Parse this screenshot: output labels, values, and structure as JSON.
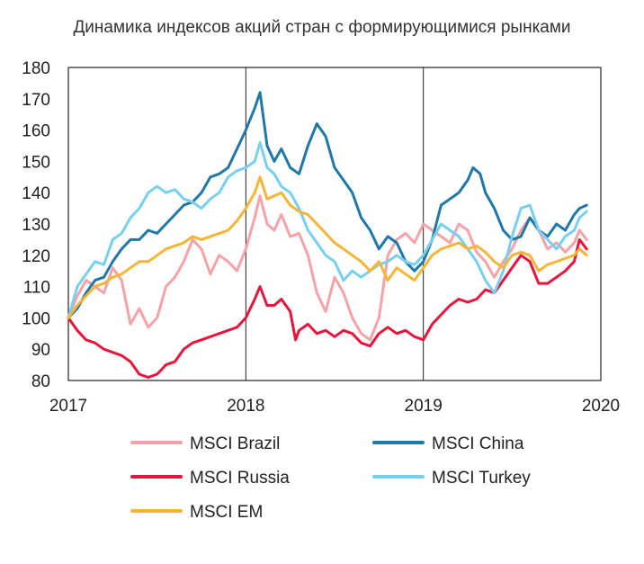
{
  "chart_data": {
    "type": "line",
    "title": "Динамика индексов акций стран с формирующимися рынками",
    "xlabel": "",
    "ylabel": "",
    "xlim": [
      2017,
      2020
    ],
    "ylim": [
      80,
      180
    ],
    "x_ticks": [
      "2017",
      "2018",
      "2019",
      "2020"
    ],
    "y_ticks": [
      "80",
      "90",
      "100",
      "110",
      "120",
      "130",
      "140",
      "150",
      "160",
      "170",
      "180"
    ],
    "grid": "vertical lines at year boundaries",
    "legend_position": "bottom",
    "series": [
      {
        "name": "MSCI Brazil",
        "color": "#f5a3a8",
        "points": [
          [
            2017.0,
            100
          ],
          [
            2017.05,
            107
          ],
          [
            2017.1,
            112
          ],
          [
            2017.15,
            110
          ],
          [
            2017.2,
            108
          ],
          [
            2017.25,
            116
          ],
          [
            2017.3,
            112
          ],
          [
            2017.35,
            98
          ],
          [
            2017.4,
            103
          ],
          [
            2017.45,
            97
          ],
          [
            2017.5,
            100
          ],
          [
            2017.55,
            110
          ],
          [
            2017.6,
            113
          ],
          [
            2017.65,
            118
          ],
          [
            2017.7,
            125
          ],
          [
            2017.75,
            122
          ],
          [
            2017.8,
            114
          ],
          [
            2017.85,
            120
          ],
          [
            2017.9,
            118
          ],
          [
            2017.95,
            115
          ],
          [
            2018.0,
            122
          ],
          [
            2018.05,
            132
          ],
          [
            2018.08,
            139
          ],
          [
            2018.12,
            130
          ],
          [
            2018.16,
            128
          ],
          [
            2018.2,
            133
          ],
          [
            2018.25,
            126
          ],
          [
            2018.3,
            127
          ],
          [
            2018.35,
            120
          ],
          [
            2018.4,
            108
          ],
          [
            2018.45,
            102
          ],
          [
            2018.5,
            113
          ],
          [
            2018.55,
            108
          ],
          [
            2018.6,
            100
          ],
          [
            2018.65,
            95
          ],
          [
            2018.7,
            93
          ],
          [
            2018.75,
            100
          ],
          [
            2018.8,
            120
          ],
          [
            2018.85,
            125
          ],
          [
            2018.9,
            127
          ],
          [
            2018.95,
            124
          ],
          [
            2019.0,
            130
          ],
          [
            2019.05,
            128
          ],
          [
            2019.1,
            126
          ],
          [
            2019.15,
            124
          ],
          [
            2019.2,
            130
          ],
          [
            2019.25,
            128
          ],
          [
            2019.3,
            121
          ],
          [
            2019.35,
            118
          ],
          [
            2019.4,
            113
          ],
          [
            2019.45,
            118
          ],
          [
            2019.5,
            122
          ],
          [
            2019.55,
            128
          ],
          [
            2019.6,
            132
          ],
          [
            2019.65,
            128
          ],
          [
            2019.7,
            122
          ],
          [
            2019.75,
            124
          ],
          [
            2019.8,
            121
          ],
          [
            2019.85,
            124
          ],
          [
            2019.88,
            128
          ],
          [
            2019.92,
            125
          ]
        ]
      },
      {
        "name": "MSCI China",
        "color": "#1f78a8",
        "points": [
          [
            2017.0,
            100
          ],
          [
            2017.05,
            103
          ],
          [
            2017.1,
            108
          ],
          [
            2017.15,
            112
          ],
          [
            2017.2,
            113
          ],
          [
            2017.25,
            118
          ],
          [
            2017.3,
            122
          ],
          [
            2017.35,
            125
          ],
          [
            2017.4,
            125
          ],
          [
            2017.45,
            128
          ],
          [
            2017.5,
            127
          ],
          [
            2017.55,
            130
          ],
          [
            2017.6,
            133
          ],
          [
            2017.65,
            136
          ],
          [
            2017.7,
            137
          ],
          [
            2017.75,
            140
          ],
          [
            2017.8,
            145
          ],
          [
            2017.85,
            146
          ],
          [
            2017.9,
            148
          ],
          [
            2017.95,
            154
          ],
          [
            2018.0,
            160
          ],
          [
            2018.05,
            167
          ],
          [
            2018.08,
            172
          ],
          [
            2018.12,
            155
          ],
          [
            2018.16,
            150
          ],
          [
            2018.2,
            154
          ],
          [
            2018.25,
            148
          ],
          [
            2018.3,
            146
          ],
          [
            2018.35,
            155
          ],
          [
            2018.4,
            162
          ],
          [
            2018.45,
            158
          ],
          [
            2018.5,
            148
          ],
          [
            2018.55,
            144
          ],
          [
            2018.6,
            140
          ],
          [
            2018.65,
            132
          ],
          [
            2018.7,
            128
          ],
          [
            2018.75,
            122
          ],
          [
            2018.8,
            126
          ],
          [
            2018.85,
            124
          ],
          [
            2018.9,
            118
          ],
          [
            2018.95,
            115
          ],
          [
            2019.0,
            118
          ],
          [
            2019.05,
            125
          ],
          [
            2019.1,
            136
          ],
          [
            2019.15,
            138
          ],
          [
            2019.2,
            140
          ],
          [
            2019.25,
            144
          ],
          [
            2019.28,
            148
          ],
          [
            2019.32,
            146
          ],
          [
            2019.35,
            140
          ],
          [
            2019.4,
            135
          ],
          [
            2019.45,
            128
          ],
          [
            2019.5,
            125
          ],
          [
            2019.55,
            126
          ],
          [
            2019.6,
            132
          ],
          [
            2019.65,
            128
          ],
          [
            2019.7,
            126
          ],
          [
            2019.75,
            130
          ],
          [
            2019.8,
            128
          ],
          [
            2019.85,
            133
          ],
          [
            2019.88,
            135
          ],
          [
            2019.92,
            136
          ]
        ]
      },
      {
        "name": "MSCI Russia",
        "color": "#e8143b",
        "points": [
          [
            2017.0,
            100
          ],
          [
            2017.05,
            96
          ],
          [
            2017.1,
            93
          ],
          [
            2017.15,
            92
          ],
          [
            2017.2,
            90
          ],
          [
            2017.25,
            89
          ],
          [
            2017.3,
            88
          ],
          [
            2017.35,
            86
          ],
          [
            2017.4,
            82
          ],
          [
            2017.45,
            81
          ],
          [
            2017.5,
            82
          ],
          [
            2017.55,
            85
          ],
          [
            2017.6,
            86
          ],
          [
            2017.65,
            90
          ],
          [
            2017.7,
            92
          ],
          [
            2017.75,
            93
          ],
          [
            2017.8,
            94
          ],
          [
            2017.85,
            95
          ],
          [
            2017.9,
            96
          ],
          [
            2017.95,
            97
          ],
          [
            2018.0,
            100
          ],
          [
            2018.05,
            106
          ],
          [
            2018.08,
            110
          ],
          [
            2018.12,
            104
          ],
          [
            2018.16,
            104
          ],
          [
            2018.2,
            106
          ],
          [
            2018.25,
            102
          ],
          [
            2018.28,
            93
          ],
          [
            2018.3,
            96
          ],
          [
            2018.35,
            98
          ],
          [
            2018.4,
            95
          ],
          [
            2018.45,
            96
          ],
          [
            2018.5,
            94
          ],
          [
            2018.55,
            96
          ],
          [
            2018.6,
            95
          ],
          [
            2018.65,
            92
          ],
          [
            2018.7,
            91
          ],
          [
            2018.75,
            95
          ],
          [
            2018.8,
            97
          ],
          [
            2018.85,
            95
          ],
          [
            2018.9,
            96
          ],
          [
            2018.95,
            94
          ],
          [
            2019.0,
            93
          ],
          [
            2019.05,
            98
          ],
          [
            2019.1,
            101
          ],
          [
            2019.15,
            104
          ],
          [
            2019.2,
            106
          ],
          [
            2019.25,
            105
          ],
          [
            2019.3,
            106
          ],
          [
            2019.35,
            109
          ],
          [
            2019.4,
            108
          ],
          [
            2019.45,
            112
          ],
          [
            2019.5,
            116
          ],
          [
            2019.55,
            120
          ],
          [
            2019.6,
            118
          ],
          [
            2019.65,
            111
          ],
          [
            2019.7,
            111
          ],
          [
            2019.75,
            113
          ],
          [
            2019.8,
            115
          ],
          [
            2019.85,
            118
          ],
          [
            2019.88,
            125
          ],
          [
            2019.92,
            122
          ]
        ]
      },
      {
        "name": "MSCI Turkey",
        "color": "#79cfef",
        "points": [
          [
            2017.0,
            100
          ],
          [
            2017.05,
            110
          ],
          [
            2017.1,
            114
          ],
          [
            2017.15,
            118
          ],
          [
            2017.2,
            117
          ],
          [
            2017.25,
            125
          ],
          [
            2017.3,
            127
          ],
          [
            2017.35,
            132
          ],
          [
            2017.4,
            135
          ],
          [
            2017.45,
            140
          ],
          [
            2017.5,
            142
          ],
          [
            2017.55,
            140
          ],
          [
            2017.6,
            141
          ],
          [
            2017.65,
            138
          ],
          [
            2017.7,
            137
          ],
          [
            2017.75,
            135
          ],
          [
            2017.8,
            138
          ],
          [
            2017.85,
            140
          ],
          [
            2017.9,
            145
          ],
          [
            2017.95,
            147
          ],
          [
            2018.0,
            148
          ],
          [
            2018.05,
            150
          ],
          [
            2018.08,
            156
          ],
          [
            2018.12,
            148
          ],
          [
            2018.16,
            146
          ],
          [
            2018.2,
            142
          ],
          [
            2018.25,
            140
          ],
          [
            2018.3,
            135
          ],
          [
            2018.35,
            128
          ],
          [
            2018.4,
            124
          ],
          [
            2018.45,
            120
          ],
          [
            2018.5,
            118
          ],
          [
            2018.55,
            112
          ],
          [
            2018.6,
            115
          ],
          [
            2018.65,
            113
          ],
          [
            2018.7,
            115
          ],
          [
            2018.75,
            117
          ],
          [
            2018.8,
            118
          ],
          [
            2018.85,
            120
          ],
          [
            2018.9,
            118
          ],
          [
            2018.95,
            117
          ],
          [
            2019.0,
            120
          ],
          [
            2019.05,
            125
          ],
          [
            2019.1,
            130
          ],
          [
            2019.15,
            128
          ],
          [
            2019.2,
            126
          ],
          [
            2019.25,
            122
          ],
          [
            2019.3,
            118
          ],
          [
            2019.35,
            112
          ],
          [
            2019.4,
            108
          ],
          [
            2019.45,
            115
          ],
          [
            2019.5,
            126
          ],
          [
            2019.55,
            135
          ],
          [
            2019.6,
            136
          ],
          [
            2019.65,
            128
          ],
          [
            2019.7,
            125
          ],
          [
            2019.75,
            122
          ],
          [
            2019.8,
            126
          ],
          [
            2019.85,
            128
          ],
          [
            2019.88,
            132
          ],
          [
            2019.92,
            134
          ]
        ]
      },
      {
        "name": "MSCI EM",
        "color": "#f7b538",
        "points": [
          [
            2017.0,
            100
          ],
          [
            2017.05,
            104
          ],
          [
            2017.1,
            107
          ],
          [
            2017.15,
            110
          ],
          [
            2017.2,
            111
          ],
          [
            2017.25,
            113
          ],
          [
            2017.3,
            114
          ],
          [
            2017.35,
            116
          ],
          [
            2017.4,
            118
          ],
          [
            2017.45,
            118
          ],
          [
            2017.5,
            120
          ],
          [
            2017.55,
            122
          ],
          [
            2017.6,
            123
          ],
          [
            2017.65,
            124
          ],
          [
            2017.7,
            126
          ],
          [
            2017.75,
            125
          ],
          [
            2017.8,
            126
          ],
          [
            2017.85,
            127
          ],
          [
            2017.9,
            128
          ],
          [
            2017.95,
            131
          ],
          [
            2018.0,
            135
          ],
          [
            2018.05,
            140
          ],
          [
            2018.08,
            145
          ],
          [
            2018.12,
            138
          ],
          [
            2018.16,
            139
          ],
          [
            2018.2,
            140
          ],
          [
            2018.25,
            136
          ],
          [
            2018.3,
            134
          ],
          [
            2018.35,
            133
          ],
          [
            2018.4,
            130
          ],
          [
            2018.45,
            127
          ],
          [
            2018.5,
            124
          ],
          [
            2018.55,
            122
          ],
          [
            2018.6,
            120
          ],
          [
            2018.65,
            118
          ],
          [
            2018.7,
            115
          ],
          [
            2018.75,
            118
          ],
          [
            2018.8,
            112
          ],
          [
            2018.85,
            116
          ],
          [
            2018.9,
            114
          ],
          [
            2018.95,
            112
          ],
          [
            2019.0,
            116
          ],
          [
            2019.05,
            120
          ],
          [
            2019.1,
            122
          ],
          [
            2019.15,
            123
          ],
          [
            2019.2,
            124
          ],
          [
            2019.25,
            122
          ],
          [
            2019.3,
            123
          ],
          [
            2019.35,
            121
          ],
          [
            2019.4,
            118
          ],
          [
            2019.45,
            116
          ],
          [
            2019.5,
            120
          ],
          [
            2019.55,
            121
          ],
          [
            2019.6,
            120
          ],
          [
            2019.65,
            115
          ],
          [
            2019.7,
            117
          ],
          [
            2019.75,
            118
          ],
          [
            2019.8,
            119
          ],
          [
            2019.85,
            120
          ],
          [
            2019.88,
            122
          ],
          [
            2019.92,
            120
          ]
        ]
      }
    ]
  }
}
